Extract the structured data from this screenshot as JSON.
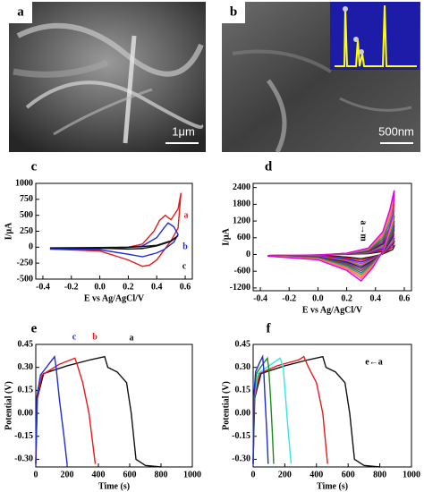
{
  "images": [
    {
      "label": "a",
      "scale_bar": "1μm"
    },
    {
      "label": "b",
      "scale_bar": "500nm"
    }
  ],
  "chart_data": [
    {
      "type": "line",
      "panel": "c",
      "xlabel": "E vs Ag/AgCl/V",
      "ylabel": "I/μA",
      "xlim": [
        -0.45,
        0.65
      ],
      "ylim": [
        -500,
        1000
      ],
      "xticks": [
        -0.4,
        -0.2,
        {
          "value": 0,
          "label": "0.0"
        },
        0.2,
        0.4,
        0.6
      ],
      "yticks": [
        -500,
        -250,
        0,
        250,
        500,
        750,
        1000
      ],
      "series": [
        {
          "name": "a",
          "color": "#e8191c",
          "x": [
            -0.35,
            0,
            0.2,
            0.3,
            0.38,
            0.42,
            0.46,
            0.5,
            0.55,
            0.57,
            0.55,
            0.5,
            0.45,
            0.4,
            0.35,
            0.3,
            0.2,
            0,
            -0.35
          ],
          "values": [
            -20,
            -10,
            0,
            50,
            250,
            420,
            500,
            430,
            600,
            850,
            300,
            100,
            -50,
            -200,
            -280,
            -300,
            -200,
            -60,
            -30
          ]
        },
        {
          "name": "b",
          "color": "#1f2bd6",
          "x": [
            -0.35,
            0,
            0.2,
            0.3,
            0.4,
            0.45,
            0.48,
            0.52,
            0.55,
            0.52,
            0.45,
            0.4,
            0.3,
            0.2,
            0,
            -0.35
          ],
          "values": [
            -30,
            -20,
            -5,
            20,
            150,
            300,
            380,
            320,
            200,
            80,
            -40,
            -90,
            -150,
            -110,
            -40,
            -30
          ]
        },
        {
          "name": "c",
          "color": "#111111",
          "x": [
            -0.35,
            0,
            0.2,
            0.3,
            0.4,
            0.5,
            0.55,
            0.5,
            0.4,
            0.3,
            0.2,
            0,
            -0.35
          ],
          "values": [
            -10,
            -5,
            0,
            10,
            30,
            100,
            180,
            90,
            20,
            -20,
            -30,
            -15,
            -10
          ]
        }
      ]
    },
    {
      "type": "line",
      "panel": "d",
      "xlabel": "E vs Ag/AgCl/V",
      "ylabel": "I/μA",
      "annotation": "a→m",
      "xlim": [
        -0.45,
        0.65
      ],
      "ylim": [
        -1300,
        2550
      ],
      "xticks": [
        -0.4,
        -0.2,
        {
          "value": 0,
          "label": "0.0"
        },
        0.2,
        0.4,
        0.6
      ],
      "yticks": [
        -1200,
        -600,
        0,
        600,
        1200,
        1800,
        2400
      ],
      "x": [
        -0.35,
        0,
        0.2,
        0.35,
        0.45,
        0.5,
        0.53,
        0.52,
        0.45,
        0.38,
        0.3,
        0.2,
        0,
        -0.35
      ],
      "series": [
        {
          "color": "#111111",
          "values": [
            -40,
            -20,
            6,
            30,
            105,
            210,
            300,
            180,
            15,
            -75,
            -150,
            -90,
            -30,
            -60
          ]
        },
        {
          "color": "#e8191c",
          "values": [
            -40,
            -20,
            9,
            45,
            158,
            315,
            450,
            270,
            23,
            -105,
            -210,
            -126,
            -42,
            -60
          ]
        },
        {
          "color": "#1f2bd6",
          "values": [
            -40,
            -20,
            12,
            60,
            210,
            420,
            600,
            360,
            30,
            -135,
            -270,
            -162,
            -54,
            -60
          ]
        },
        {
          "color": "#d62ad6",
          "values": [
            -40,
            -20,
            15,
            75,
            263,
            525,
            750,
            450,
            38,
            -165,
            -330,
            -198,
            -66,
            -60
          ]
        },
        {
          "color": "#8a8a00",
          "values": [
            -40,
            -20,
            18,
            90,
            315,
            630,
            900,
            540,
            45,
            -195,
            -390,
            -234,
            -78,
            -60
          ]
        },
        {
          "color": "#1c1c8c",
          "values": [
            -40,
            -20,
            21,
            105,
            368,
            735,
            1050,
            630,
            53,
            -225,
            -450,
            -270,
            -90,
            -60
          ]
        },
        {
          "color": "#7a1fa2",
          "values": [
            -40,
            -20,
            24,
            120,
            420,
            840,
            1200,
            720,
            60,
            -255,
            -510,
            -306,
            -102,
            -60
          ]
        },
        {
          "color": "#8b4513",
          "values": [
            -40,
            -20,
            28,
            140,
            490,
            980,
            1400,
            840,
            70,
            -290,
            -580,
            -348,
            -116,
            -60
          ]
        },
        {
          "color": "#008b8b",
          "values": [
            -40,
            -20,
            32,
            160,
            560,
            1120,
            1600,
            960,
            80,
            -325,
            -650,
            -390,
            -130,
            -60
          ]
        },
        {
          "color": "#808080",
          "values": [
            -40,
            -20,
            36,
            180,
            630,
            1260,
            1800,
            1080,
            90,
            -360,
            -720,
            -432,
            -144,
            -60
          ]
        },
        {
          "color": "#ff8c00",
          "values": [
            -40,
            -20,
            40,
            200,
            700,
            1400,
            2000,
            1200,
            100,
            -395,
            -790,
            -474,
            -158,
            -60
          ]
        },
        {
          "color": "#ff69b4",
          "values": [
            -40,
            -20,
            43,
            215,
            753,
            1505,
            2150,
            1290,
            108,
            -430,
            -860,
            -516,
            -172,
            -60
          ]
        },
        {
          "color": "#e000e0",
          "values": [
            -40,
            -20,
            46,
            230,
            805,
            1610,
            2300,
            1380,
            115,
            -475,
            -950,
            -570,
            -190,
            -60
          ]
        }
      ]
    },
    {
      "type": "line",
      "panel": "e",
      "xlabel": "Time (s)",
      "ylabel": "Potential (V)",
      "xlim": [
        0,
        1000
      ],
      "ylim": [
        -0.35,
        0.45
      ],
      "xticks": [
        0,
        200,
        400,
        600,
        800,
        1000
      ],
      "yticks": [
        {
          "value": -0.3,
          "label": "-0.30"
        },
        {
          "value": -0.15,
          "label": "-0.15"
        },
        {
          "value": 0,
          "label": "0.00"
        },
        {
          "value": 0.15,
          "label": "0.15"
        },
        {
          "value": 0.3,
          "label": "0.30"
        },
        {
          "value": 0.45,
          "label": "0.45"
        }
      ],
      "series": [
        {
          "name": "a",
          "color": "#111111",
          "x": [
            0,
            10,
            50,
            200,
            350,
            440,
            460,
            520,
            580,
            610,
            640,
            700,
            800
          ],
          "values": [
            -0.33,
            0.1,
            0.26,
            0.31,
            0.35,
            0.37,
            0.3,
            0.27,
            0.2,
            0,
            -0.3,
            -0.34,
            -0.35
          ]
        },
        {
          "name": "b",
          "color": "#e8191c",
          "x": [
            0,
            8,
            40,
            150,
            250,
            270,
            300,
            340,
            380
          ],
          "values": [
            -0.33,
            0.1,
            0.25,
            0.32,
            0.36,
            0.3,
            0.2,
            0,
            -0.33
          ]
        },
        {
          "name": "c",
          "color": "#1f2bd6",
          "x": [
            0,
            6,
            30,
            90,
            120,
            130,
            150,
            180,
            200
          ],
          "values": [
            -0.33,
            0.1,
            0.25,
            0.33,
            0.37,
            0.3,
            0.1,
            -0.15,
            -0.33
          ]
        }
      ]
    },
    {
      "type": "line",
      "panel": "f",
      "xlabel": "Time (s)",
      "ylabel": "Potential (V)",
      "annotation": "e←a",
      "xlim": [
        0,
        1000
      ],
      "ylim": [
        -0.35,
        0.45
      ],
      "xticks": [
        0,
        200,
        400,
        600,
        800,
        1000
      ],
      "yticks": [
        {
          "value": -0.3,
          "label": "-0.30"
        },
        {
          "value": -0.15,
          "label": "-0.15"
        },
        {
          "value": 0,
          "label": "0.00"
        },
        {
          "value": 0.15,
          "label": "0.15"
        },
        {
          "value": 0.3,
          "label": "0.30"
        },
        {
          "value": 0.45,
          "label": "0.45"
        }
      ],
      "series": [
        {
          "color": "#111111",
          "x": [
            0,
            10,
            50,
            200,
            350,
            440,
            460,
            520,
            580,
            610,
            640,
            700,
            800
          ],
          "values": [
            -0.33,
            0.1,
            0.26,
            0.31,
            0.35,
            0.37,
            0.3,
            0.27,
            0.2,
            0,
            -0.3,
            -0.34,
            -0.35
          ]
        },
        {
          "color": "#e8191c",
          "x": [
            0,
            8,
            40,
            150,
            290,
            320,
            350,
            400,
            440,
            470
          ],
          "values": [
            -0.33,
            0.1,
            0.26,
            0.31,
            0.35,
            0.37,
            0.3,
            0.2,
            0,
            -0.33
          ]
        },
        {
          "color": "#33e6e6",
          "x": [
            0,
            6,
            30,
            100,
            170,
            190,
            205,
            220,
            240
          ],
          "values": [
            -0.33,
            0.1,
            0.26,
            0.31,
            0.36,
            0.3,
            0.1,
            -0.1,
            -0.33
          ]
        },
        {
          "color": "#1a8c1a",
          "x": [
            0,
            5,
            20,
            60,
            90,
            98,
            110,
            120,
            130
          ],
          "values": [
            -0.33,
            0.1,
            0.26,
            0.32,
            0.36,
            0.3,
            0.1,
            -0.1,
            -0.33
          ]
        },
        {
          "color": "#1f2bd6",
          "x": [
            0,
            4,
            15,
            40,
            60,
            66,
            75,
            85,
            95
          ],
          "values": [
            -0.33,
            0.1,
            0.27,
            0.33,
            0.37,
            0.3,
            0.1,
            -0.1,
            -0.33
          ]
        }
      ]
    }
  ]
}
